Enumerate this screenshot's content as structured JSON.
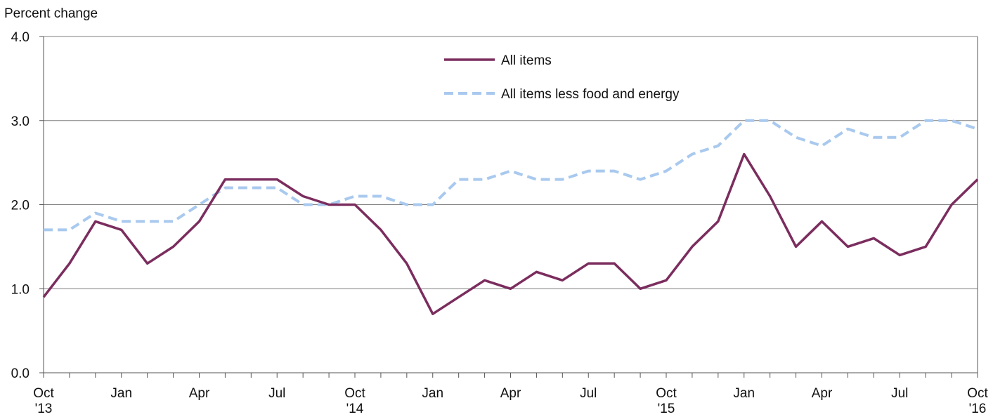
{
  "chart_data": {
    "type": "line",
    "ylabel": "Percent change",
    "ylim": [
      0,
      4
    ],
    "yticks": [
      "0.0",
      "1.0",
      "2.0",
      "3.0",
      "4.0"
    ],
    "grid": true,
    "legend_position": "top-center",
    "x": [
      "Oct 2013",
      "Nov 2013",
      "Dec 2013",
      "Jan 2014",
      "Feb 2014",
      "Mar 2014",
      "Apr 2014",
      "May 2014",
      "Jun 2014",
      "Jul 2014",
      "Aug 2014",
      "Sep 2014",
      "Oct 2014",
      "Nov 2014",
      "Dec 2014",
      "Jan 2015",
      "Feb 2015",
      "Mar 2015",
      "Apr 2015",
      "May 2015",
      "Jun 2015",
      "Jul 2015",
      "Aug 2015",
      "Sep 2015",
      "Oct 2015",
      "Nov 2015",
      "Dec 2015",
      "Jan 2016",
      "Feb 2016",
      "Mar 2016",
      "Apr 2016",
      "May 2016",
      "Jun 2016",
      "Jul 2016",
      "Aug 2016",
      "Sep 2016",
      "Oct 2016"
    ],
    "xtick_labels": [
      {
        "index": 0,
        "line1": "Oct",
        "line2": "'13"
      },
      {
        "index": 3,
        "line1": "Jan",
        "line2": ""
      },
      {
        "index": 6,
        "line1": "Apr",
        "line2": ""
      },
      {
        "index": 9,
        "line1": "Jul",
        "line2": ""
      },
      {
        "index": 12,
        "line1": "Oct",
        "line2": "'14"
      },
      {
        "index": 15,
        "line1": "Jan",
        "line2": ""
      },
      {
        "index": 18,
        "line1": "Apr",
        "line2": ""
      },
      {
        "index": 21,
        "line1": "Jul",
        "line2": ""
      },
      {
        "index": 24,
        "line1": "Oct",
        "line2": "'15"
      },
      {
        "index": 27,
        "line1": "Jan",
        "line2": ""
      },
      {
        "index": 30,
        "line1": "Apr",
        "line2": ""
      },
      {
        "index": 33,
        "line1": "Jul",
        "line2": ""
      },
      {
        "index": 36,
        "line1": "Oct",
        "line2": "'16"
      }
    ],
    "series": [
      {
        "name": "All items",
        "color": "#7b2d5e",
        "style": "solid",
        "values": [
          0.9,
          1.3,
          1.8,
          1.7,
          1.3,
          1.5,
          1.8,
          2.3,
          2.3,
          2.3,
          2.1,
          2.0,
          2.0,
          1.7,
          1.3,
          0.7,
          0.9,
          1.1,
          1.0,
          1.2,
          1.1,
          1.3,
          1.3,
          1.0,
          1.1,
          1.5,
          1.8,
          2.6,
          2.1,
          1.5,
          1.8,
          1.5,
          1.6,
          1.4,
          1.5,
          2.0,
          2.3
        ]
      },
      {
        "name": "All items less food and energy",
        "color": "#a9c9ee",
        "style": "dashed",
        "values": [
          1.7,
          1.7,
          1.9,
          1.8,
          1.8,
          1.8,
          2.0,
          2.2,
          2.2,
          2.2,
          2.0,
          2.0,
          2.1,
          2.1,
          2.0,
          2.0,
          2.3,
          2.3,
          2.4,
          2.3,
          2.3,
          2.4,
          2.4,
          2.3,
          2.4,
          2.6,
          2.7,
          3.0,
          3.0,
          2.8,
          2.7,
          2.9,
          2.8,
          2.8,
          3.0,
          3.0,
          2.9
        ]
      }
    ]
  }
}
